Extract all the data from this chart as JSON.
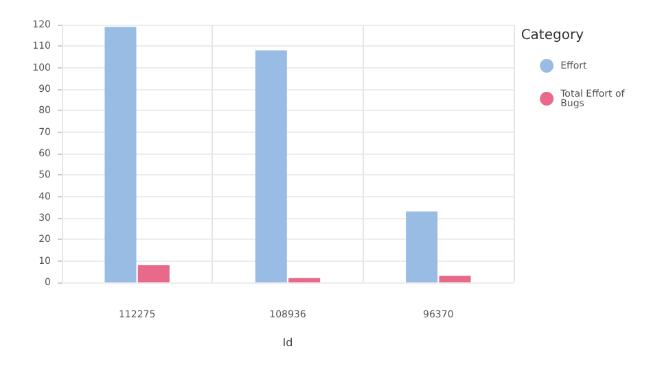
{
  "chart_data": {
    "type": "bar",
    "xlabel": "Id",
    "legend_title": "Category",
    "categories": [
      "112275",
      "108936",
      "96370"
    ],
    "series": [
      {
        "name": "Effort",
        "color": "#99bce4",
        "values": [
          119,
          108,
          33
        ]
      },
      {
        "name": "Total Effort of Bugs",
        "color": "#e8698a",
        "values": [
          8,
          2,
          3
        ]
      }
    ],
    "ylim": [
      0,
      120
    ],
    "yticks": [
      0,
      10,
      20,
      30,
      40,
      50,
      60,
      70,
      80,
      90,
      100,
      110,
      120
    ],
    "grid": true,
    "legend": "top right"
  }
}
